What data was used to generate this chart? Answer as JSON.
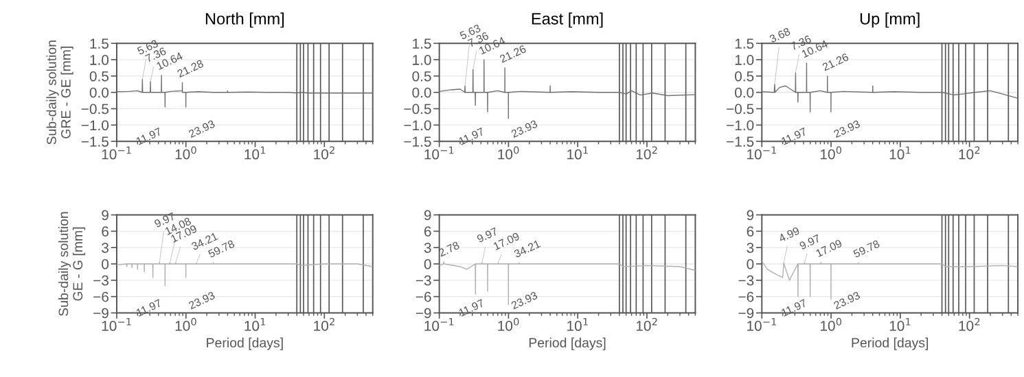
{
  "chart_data": [
    {
      "type": "line",
      "title": "North [mm]",
      "ylabel": "Sub-daily solution\nGRE - GE [mm]",
      "log": "x",
      "grid": "y",
      "xlim": [
        0.1,
        500
      ],
      "ylim": [
        -1.5,
        1.5
      ],
      "xticks": [
        {
          "value": 0.1,
          "label": "10$^{−1}$"
        },
        {
          "value": 1,
          "label": "10$^{0}$"
        },
        {
          "value": 10,
          "label": "10$^{1}$"
        },
        {
          "value": 100,
          "label": "10$^{2}$"
        }
      ],
      "yticks": [
        {
          "value": -1.5,
          "label": "−1.5"
        },
        {
          "value": -1.0,
          "label": "−1.0"
        },
        {
          "value": -0.5,
          "label": "−0.5"
        },
        {
          "value": 0,
          "label": "0.0"
        },
        0.5,
        {
          "value": 1,
          "label": "1.0"
        },
        1.5
      ],
      "series": [
        {
          "color": "#707070",
          "x": [
            0.1,
            0.15,
            0.2,
            0.233,
            0.235,
            0.237,
            0.305,
            0.307,
            0.309,
            0.441,
            0.443,
            0.445,
            0.497,
            0.499,
            0.501,
            0.6,
            0.884,
            0.887,
            0.89,
            0.995,
            0.997,
            0.999,
            1.5,
            2.5,
            3.98,
            4.0,
            4.02,
            8,
            15,
            30,
            40,
            45,
            60,
            100,
            200,
            500
          ],
          "values": [
            0.02,
            0.03,
            0.05,
            0.0,
            0.4,
            0.0,
            0.0,
            0.33,
            0.0,
            0.0,
            0.52,
            0.0,
            0.0,
            -0.45,
            0.0,
            0.03,
            0.05,
            0.3,
            0.0,
            0.0,
            -0.45,
            0.0,
            0.02,
            0.0,
            0.0,
            0.05,
            0.0,
            0.01,
            0.0,
            0.0,
            -0.02,
            0.0,
            -0.02,
            -0.02,
            -0.02,
            -0.02
          ]
        }
      ],
      "ref_lines": [
        {
          "axis": "x",
          "value": 40,
          "color": "#555555"
        },
        {
          "axis": "x",
          "value": 45,
          "color": "#555555"
        },
        {
          "axis": "x",
          "value": 50,
          "color": "#555555"
        },
        {
          "axis": "x",
          "value": 58,
          "color": "#555555"
        },
        {
          "axis": "x",
          "value": 70,
          "color": "#555555"
        },
        {
          "axis": "x",
          "value": 88,
          "color": "#555555"
        },
        {
          "axis": "x",
          "value": 117,
          "color": "#555555"
        },
        {
          "axis": "x",
          "value": 183,
          "color": "#555555"
        },
        {
          "axis": "x",
          "value": 365,
          "color": "#555555"
        }
      ],
      "annotations": [
        {
          "text": "5.63",
          "x": 0.235,
          "y": 0.4
        },
        {
          "text": "7.36",
          "x": 0.307,
          "y": 0.33
        },
        {
          "text": "10.64",
          "x": 0.443,
          "y": 0.52
        },
        {
          "text": "21.28",
          "x": 0.887,
          "y": 0.3
        },
        {
          "text": "11.97",
          "x": 0.499,
          "y": -0.45
        },
        {
          "text": "23.93",
          "x": 0.997,
          "y": -0.45
        }
      ]
    },
    {
      "type": "line",
      "title": "East [mm]",
      "log": "x",
      "grid": "y",
      "xlim": [
        0.1,
        500
      ],
      "ylim": [
        -1.5,
        1.5
      ],
      "xticks": [
        {
          "value": 0.1,
          "label": "10$^{−1}$"
        },
        {
          "value": 1,
          "label": "10$^{0}$"
        },
        {
          "value": 10,
          "label": "10$^{1}$"
        },
        {
          "value": 100,
          "label": "10$^{2}$"
        }
      ],
      "yticks": [
        {
          "value": -1.5,
          "label": "−1.5"
        },
        {
          "value": -1.0,
          "label": "−1.0"
        },
        {
          "value": -0.5,
          "label": "−0.5"
        },
        {
          "value": 0,
          "label": "0.0"
        },
        0.5,
        {
          "value": 1,
          "label": "1.0"
        },
        1.5
      ],
      "series": [
        {
          "color": "#707070",
          "x": [
            0.1,
            0.15,
            0.2,
            0.233,
            0.235,
            0.237,
            0.305,
            0.307,
            0.309,
            0.33,
            0.332,
            0.334,
            0.441,
            0.443,
            0.445,
            0.497,
            0.499,
            0.501,
            0.7,
            0.884,
            0.886,
            0.888,
            0.995,
            0.997,
            0.999,
            1.5,
            3.98,
            4.0,
            4.02,
            8,
            20,
            40,
            50,
            60,
            80,
            120,
            200,
            500
          ],
          "values": [
            0.03,
            0.08,
            0.1,
            0.0,
            0.2,
            0.0,
            0.0,
            0.7,
            0.0,
            0.0,
            -0.4,
            0.0,
            0.0,
            1.0,
            0.0,
            0.0,
            -0.6,
            0.0,
            0.05,
            0.0,
            0.75,
            0.0,
            0.0,
            -0.8,
            0.0,
            0.03,
            0.0,
            0.2,
            0.0,
            0.02,
            0.0,
            0.0,
            -0.05,
            0.05,
            -0.08,
            -0.02,
            -0.1,
            -0.07
          ]
        }
      ],
      "ref_lines": [
        {
          "axis": "x",
          "value": 40,
          "color": "#555555"
        },
        {
          "axis": "x",
          "value": 45,
          "color": "#555555"
        },
        {
          "axis": "x",
          "value": 50,
          "color": "#555555"
        },
        {
          "axis": "x",
          "value": 58,
          "color": "#555555"
        },
        {
          "axis": "x",
          "value": 70,
          "color": "#555555"
        },
        {
          "axis": "x",
          "value": 88,
          "color": "#555555"
        },
        {
          "axis": "x",
          "value": 117,
          "color": "#555555"
        },
        {
          "axis": "x",
          "value": 183,
          "color": "#555555"
        },
        {
          "axis": "x",
          "value": 365,
          "color": "#555555"
        }
      ],
      "annotations": [
        {
          "text": "5.63",
          "x": 0.235,
          "y": 0.2
        },
        {
          "text": "7.36",
          "x": 0.307,
          "y": 0.7
        },
        {
          "text": "10.64",
          "x": 0.443,
          "y": 1.0
        },
        {
          "text": "21.26",
          "x": 0.886,
          "y": 0.75
        },
        {
          "text": "11.97",
          "x": 0.499,
          "y": -0.6
        },
        {
          "text": "23.93",
          "x": 0.997,
          "y": -0.8
        }
      ]
    },
    {
      "type": "line",
      "title": "Up [mm]",
      "log": "x",
      "grid": "y",
      "xlim": [
        0.1,
        500
      ],
      "ylim": [
        -1.5,
        1.5
      ],
      "xticks": [
        {
          "value": 0.1,
          "label": "10$^{−1}$"
        },
        {
          "value": 1,
          "label": "10$^{0}$"
        },
        {
          "value": 10,
          "label": "10$^{1}$"
        },
        {
          "value": 100,
          "label": "10$^{2}$"
        }
      ],
      "yticks": [
        {
          "value": -1.5,
          "label": "−1.5"
        },
        {
          "value": -1.0,
          "label": "−1.0"
        },
        {
          "value": -0.5,
          "label": "−0.5"
        },
        {
          "value": 0,
          "label": "0.0"
        },
        0.5,
        {
          "value": 1,
          "label": "1.0"
        },
        1.5
      ],
      "series": [
        {
          "color": "#707070",
          "x": [
            0.1,
            0.151,
            0.153,
            0.155,
            0.18,
            0.22,
            0.305,
            0.307,
            0.309,
            0.33,
            0.332,
            0.334,
            0.441,
            0.443,
            0.445,
            0.497,
            0.499,
            0.501,
            0.7,
            0.884,
            0.886,
            0.888,
            0.995,
            0.997,
            0.999,
            1.5,
            3.98,
            4.0,
            4.02,
            8,
            20,
            40,
            60,
            80,
            120,
            200,
            300,
            500
          ],
          "values": [
            0.02,
            0.0,
            0.25,
            0.0,
            0.15,
            0.2,
            0.0,
            0.6,
            0.0,
            0.0,
            -0.3,
            0.0,
            0.0,
            0.9,
            0.0,
            0.0,
            -0.6,
            0.0,
            0.05,
            0.0,
            0.5,
            0.0,
            0.0,
            -0.6,
            0.0,
            0.03,
            0.0,
            0.2,
            0.0,
            0.02,
            0.0,
            0.0,
            -0.08,
            -0.05,
            0.0,
            0.05,
            -0.05,
            -0.18
          ]
        }
      ],
      "ref_lines": [
        {
          "axis": "x",
          "value": 40,
          "color": "#555555"
        },
        {
          "axis": "x",
          "value": 45,
          "color": "#555555"
        },
        {
          "axis": "x",
          "value": 50,
          "color": "#555555"
        },
        {
          "axis": "x",
          "value": 58,
          "color": "#555555"
        },
        {
          "axis": "x",
          "value": 70,
          "color": "#555555"
        },
        {
          "axis": "x",
          "value": 88,
          "color": "#555555"
        },
        {
          "axis": "x",
          "value": 117,
          "color": "#555555"
        },
        {
          "axis": "x",
          "value": 183,
          "color": "#555555"
        },
        {
          "axis": "x",
          "value": 365,
          "color": "#555555"
        }
      ],
      "annotations": [
        {
          "text": "3.68",
          "x": 0.153,
          "y": 0.25
        },
        {
          "text": "7.36",
          "x": 0.307,
          "y": 0.6
        },
        {
          "text": "10.64",
          "x": 0.443,
          "y": 0.9
        },
        {
          "text": "21.26",
          "x": 0.886,
          "y": 0.5
        },
        {
          "text": "11.97",
          "x": 0.499,
          "y": -0.6
        },
        {
          "text": "23.93",
          "x": 0.997,
          "y": -0.6
        }
      ]
    },
    {
      "type": "line",
      "ylabel": "Sub-daily solution\nGE - G [mm]",
      "xlabel": "Period [days]",
      "log": "x",
      "grid": "y",
      "xlim": [
        0.1,
        500
      ],
      "ylim": [
        -9,
        9
      ],
      "xticks": [
        {
          "value": 0.1,
          "label": "10$^{−1}$"
        },
        {
          "value": 1,
          "label": "10$^{0}$"
        },
        {
          "value": 10,
          "label": "10$^{1}$"
        },
        {
          "value": 100,
          "label": "10$^{2}$"
        }
      ],
      "yticks": [
        {
          "value": -9,
          "label": "−9"
        },
        {
          "value": -6,
          "label": "−6"
        },
        {
          "value": -3,
          "label": "−3"
        },
        0,
        3,
        6,
        9
      ],
      "series": [
        {
          "color": "#b0b0b0",
          "x": [
            0.1,
            0.139,
            0.14,
            0.141,
            0.165,
            0.166,
            0.167,
            0.199,
            0.2,
            0.201,
            0.249,
            0.25,
            0.251,
            0.331,
            0.333,
            0.335,
            0.414,
            0.415,
            0.416,
            0.497,
            0.499,
            0.501,
            0.586,
            0.587,
            0.588,
            0.711,
            0.712,
            0.713,
            0.995,
            0.997,
            0.999,
            1.42,
            1.425,
            1.43,
            2.48,
            2.49,
            2.5,
            10,
            40,
            45,
            100,
            300,
            500
          ],
          "values": [
            -0.2,
            0,
            -0.5,
            0,
            0,
            -0.7,
            0,
            0,
            -1.0,
            0,
            0,
            -1.5,
            0,
            0,
            -2.5,
            0,
            0,
            0.3,
            0,
            0,
            -4.0,
            0,
            0,
            0.3,
            0,
            0,
            0.3,
            0,
            0,
            -2.5,
            0,
            0,
            0.2,
            0,
            0,
            0.2,
            0,
            0,
            0,
            -0.3,
            0,
            0,
            -0.5
          ]
        }
      ],
      "ref_lines": [
        {
          "axis": "x",
          "value": 40,
          "color": "#555555"
        },
        {
          "axis": "x",
          "value": 45,
          "color": "#555555"
        },
        {
          "axis": "x",
          "value": 50,
          "color": "#555555"
        },
        {
          "axis": "x",
          "value": 58,
          "color": "#555555"
        },
        {
          "axis": "x",
          "value": 70,
          "color": "#555555"
        },
        {
          "axis": "x",
          "value": 88,
          "color": "#555555"
        },
        {
          "axis": "x",
          "value": 117,
          "color": "#555555"
        },
        {
          "axis": "x",
          "value": 183,
          "color": "#555555"
        },
        {
          "axis": "x",
          "value": 365,
          "color": "#555555"
        }
      ],
      "annotations": [
        {
          "text": "9.97",
          "x": 0.415,
          "y": 0.3
        },
        {
          "text": "14.08",
          "x": 0.587,
          "y": 0.3
        },
        {
          "text": "17.09",
          "x": 0.712,
          "y": 0.3
        },
        {
          "text": "34.21",
          "x": 1.425,
          "y": 0.2
        },
        {
          "text": "59.78",
          "x": 2.49,
          "y": 0.2
        },
        {
          "text": "11.97",
          "x": 0.499,
          "y": -4.0
        },
        {
          "text": "23.93",
          "x": 0.997,
          "y": -2.5
        }
      ]
    },
    {
      "type": "line",
      "xlabel": "Period [days]",
      "log": "x",
      "grid": "y",
      "xlim": [
        0.1,
        500
      ],
      "ylim": [
        -9,
        9
      ],
      "xticks": [
        {
          "value": 0.1,
          "label": "10$^{−1}$"
        },
        {
          "value": 1,
          "label": "10$^{0}$"
        },
        {
          "value": 10,
          "label": "10$^{1}$"
        },
        {
          "value": 100,
          "label": "10$^{2}$"
        }
      ],
      "yticks": [
        {
          "value": -9,
          "label": "−9"
        },
        {
          "value": -6,
          "label": "−6"
        },
        {
          "value": -3,
          "label": "−3"
        },
        0,
        3,
        6,
        9
      ],
      "series": [
        {
          "color": "#b0b0b0",
          "x": [
            0.1,
            0.115,
            0.116,
            0.117,
            0.2,
            0.25,
            0.331,
            0.333,
            0.335,
            0.414,
            0.415,
            0.416,
            0.497,
            0.499,
            0.501,
            0.711,
            0.712,
            0.713,
            0.995,
            0.997,
            0.999,
            1.42,
            1.425,
            1.43,
            10,
            40,
            45,
            100,
            300,
            500
          ],
          "values": [
            -0.3,
            0,
            0.4,
            0,
            -0.5,
            -1,
            0,
            -5.5,
            0,
            0,
            0.3,
            0,
            0,
            -5.0,
            0,
            0,
            0.3,
            0,
            0,
            -7.5,
            0,
            0,
            0.2,
            0,
            0,
            0,
            -0.5,
            -0.3,
            -0.5,
            -1.2
          ]
        }
      ],
      "ref_lines": [
        {
          "axis": "x",
          "value": 40,
          "color": "#555555"
        },
        {
          "axis": "x",
          "value": 45,
          "color": "#555555"
        },
        {
          "axis": "x",
          "value": 50,
          "color": "#555555"
        },
        {
          "axis": "x",
          "value": 58,
          "color": "#555555"
        },
        {
          "axis": "x",
          "value": 70,
          "color": "#555555"
        },
        {
          "axis": "x",
          "value": 88,
          "color": "#555555"
        },
        {
          "axis": "x",
          "value": 117,
          "color": "#555555"
        },
        {
          "axis": "x",
          "value": 183,
          "color": "#555555"
        },
        {
          "axis": "x",
          "value": 365,
          "color": "#555555"
        }
      ],
      "annotations": [
        {
          "text": "2.78",
          "x": 0.116,
          "y": 0.4
        },
        {
          "text": "9.97",
          "x": 0.415,
          "y": 0.3
        },
        {
          "text": "17.09",
          "x": 0.712,
          "y": 0.3
        },
        {
          "text": "34.21",
          "x": 1.425,
          "y": 0.2
        },
        {
          "text": "11.97",
          "x": 0.499,
          "y": -5.0
        },
        {
          "text": "23.93",
          "x": 0.997,
          "y": -7.5
        }
      ]
    },
    {
      "type": "line",
      "xlabel": "Period [days]",
      "log": "x",
      "grid": "y",
      "xlim": [
        0.1,
        500
      ],
      "ylim": [
        -9,
        9
      ],
      "xticks": [
        {
          "value": 0.1,
          "label": "10$^{−1}$"
        },
        {
          "value": 1,
          "label": "10$^{0}$"
        },
        {
          "value": 10,
          "label": "10$^{1}$"
        },
        {
          "value": 100,
          "label": "10$^{2}$"
        }
      ],
      "yticks": [
        {
          "value": -9,
          "label": "−9"
        },
        {
          "value": -6,
          "label": "−6"
        },
        {
          "value": -3,
          "label": "−3"
        },
        0,
        3,
        6,
        9
      ],
      "series": [
        {
          "color": "#b0b0b0",
          "x": [
            0.1,
            0.12,
            0.14,
            0.166,
            0.2,
            0.207,
            0.208,
            0.209,
            0.25,
            0.331,
            0.333,
            0.335,
            0.414,
            0.415,
            0.416,
            0.497,
            0.499,
            0.501,
            0.711,
            0.712,
            0.713,
            0.995,
            0.997,
            0.999,
            2.48,
            2.49,
            2.5,
            10,
            40,
            45,
            100,
            300,
            500
          ],
          "values": [
            0.5,
            -1,
            -1.5,
            -2,
            -2.5,
            0,
            0.3,
            0,
            -3,
            0,
            -6,
            0,
            0,
            0.3,
            0,
            0,
            -6.0,
            0,
            0,
            0.3,
            0,
            0,
            -6.5,
            0,
            0,
            0.2,
            0,
            0,
            0,
            -0.5,
            -0.5,
            -0.3,
            -0.5
          ]
        }
      ],
      "ref_lines": [
        {
          "axis": "x",
          "value": 40,
          "color": "#555555"
        },
        {
          "axis": "x",
          "value": 45,
          "color": "#555555"
        },
        {
          "axis": "x",
          "value": 50,
          "color": "#555555"
        },
        {
          "axis": "x",
          "value": 58,
          "color": "#555555"
        },
        {
          "axis": "x",
          "value": 70,
          "color": "#555555"
        },
        {
          "axis": "x",
          "value": 88,
          "color": "#555555"
        },
        {
          "axis": "x",
          "value": 117,
          "color": "#555555"
        },
        {
          "axis": "x",
          "value": 183,
          "color": "#555555"
        },
        {
          "axis": "x",
          "value": 365,
          "color": "#555555"
        }
      ],
      "annotations": [
        {
          "text": "4.99",
          "x": 0.208,
          "y": 0.3
        },
        {
          "text": "9.97",
          "x": 0.415,
          "y": 0.3
        },
        {
          "text": "17.09",
          "x": 0.712,
          "y": 0.3
        },
        {
          "text": "59.78",
          "x": 2.49,
          "y": 0.2
        },
        {
          "text": "11.97",
          "x": 0.499,
          "y": -6.0
        },
        {
          "text": "23.93",
          "x": 0.997,
          "y": -6.5
        }
      ]
    }
  ]
}
